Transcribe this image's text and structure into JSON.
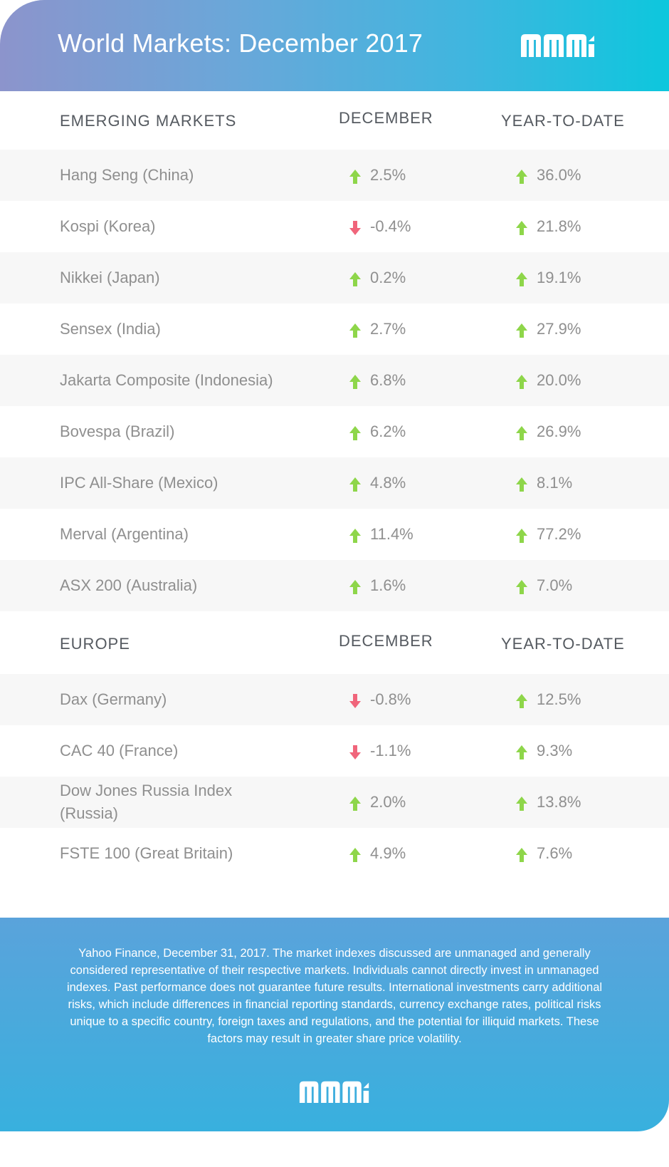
{
  "header": {
    "title": "World Markets: December 2017"
  },
  "colors": {
    "up": "#8ed64a",
    "down": "#f0657b"
  },
  "sections": [
    {
      "heading": "EMERGING MARKETS",
      "col_month": "DECEMBER",
      "col_ytd": "YEAR-TO-DATE",
      "rows": [
        {
          "name": "Hang Seng (China)",
          "december": "2.5%",
          "december_dir": "up",
          "ytd": "36.0%",
          "ytd_dir": "up"
        },
        {
          "name": "Kospi (Korea)",
          "december": "-0.4%",
          "december_dir": "down",
          "ytd": "21.8%",
          "ytd_dir": "up"
        },
        {
          "name": "Nikkei (Japan)",
          "december": "0.2%",
          "december_dir": "up",
          "ytd": "19.1%",
          "ytd_dir": "up"
        },
        {
          "name": "Sensex (India)",
          "december": "2.7%",
          "december_dir": "up",
          "ytd": "27.9%",
          "ytd_dir": "up"
        },
        {
          "name": "Jakarta Composite (Indonesia)",
          "december": "6.8%",
          "december_dir": "up",
          "ytd": "20.0%",
          "ytd_dir": "up"
        },
        {
          "name": "Bovespa (Brazil)",
          "december": "6.2%",
          "december_dir": "up",
          "ytd": "26.9%",
          "ytd_dir": "up"
        },
        {
          "name": "IPC All-Share (Mexico)",
          "december": "4.8%",
          "december_dir": "up",
          "ytd": "8.1%",
          "ytd_dir": "up"
        },
        {
          "name": "Merval (Argentina)",
          "december": "11.4%",
          "december_dir": "up",
          "ytd": "77.2%",
          "ytd_dir": "up"
        },
        {
          "name": "ASX 200 (Australia)",
          "december": "1.6%",
          "december_dir": "up",
          "ytd": "7.0%",
          "ytd_dir": "up"
        }
      ]
    },
    {
      "heading": "EUROPE",
      "col_month": "DECEMBER",
      "col_ytd": "YEAR-TO-DATE",
      "rows": [
        {
          "name": "Dax (Germany)",
          "december": "-0.8%",
          "december_dir": "down",
          "ytd": "12.5%",
          "ytd_dir": "up"
        },
        {
          "name": "CAC 40 (France)",
          "december": "-1.1%",
          "december_dir": "down",
          "ytd": "9.3%",
          "ytd_dir": "up"
        },
        {
          "name": "Dow Jones Russia Index (Russia)",
          "december": "2.0%",
          "december_dir": "up",
          "ytd": "13.8%",
          "ytd_dir": "up"
        },
        {
          "name": "FSTE 100 (Great Britain)",
          "december": "4.9%",
          "december_dir": "up",
          "ytd": "7.6%",
          "ytd_dir": "up"
        }
      ]
    }
  ],
  "footer": {
    "disclaimer": "Yahoo Finance, December 31, 2017. The market indexes discussed are unmanaged and generally considered representative of their respective markets. Individuals cannot directly invest in unmanaged indexes. Past performance does not guarantee future results. International investments carry additional risks, which include differences in financial reporting standards, currency exchange rates, political risks unique to a specific country, foreign taxes and regulations, and the potential for illiquid markets. These factors may result in greater share price volatility."
  }
}
